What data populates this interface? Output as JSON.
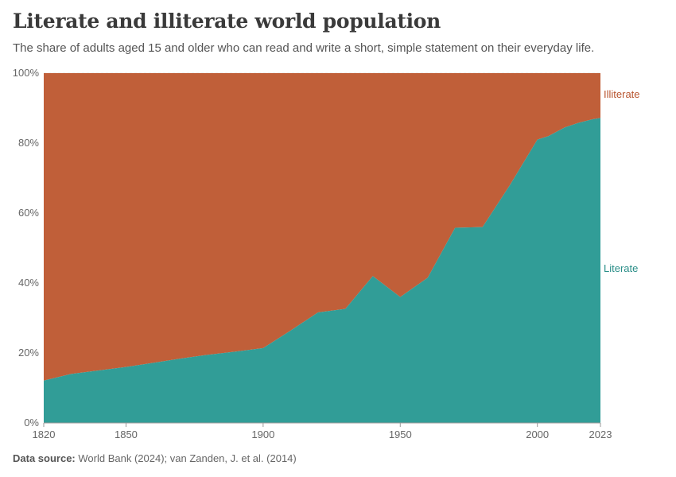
{
  "title": "Literate and illiterate world population",
  "subtitle": "The share of adults aged 15 and older who can read and write a short, simple statement on their everyday life.",
  "footer": {
    "source_label": "Data source:",
    "source_text": "World Bank (2024); van Zanden, J. et al. (2014)"
  },
  "colors": {
    "literate": "#319d97",
    "illiterate": "#c05f39"
  },
  "chart_data": {
    "type": "area",
    "stacked": true,
    "percent": true,
    "x": [
      1820,
      1830,
      1840,
      1850,
      1860,
      1870,
      1880,
      1890,
      1900,
      1910,
      1920,
      1930,
      1940,
      1950,
      1960,
      1970,
      1980,
      1990,
      2000,
      2004,
      2010,
      2015,
      2020,
      2023
    ],
    "series": [
      {
        "name": "Literate",
        "values": [
          12.1,
          14,
          15,
          16,
          17.2,
          18.4,
          19.5,
          20.4,
          21.4,
          26.4,
          31.6,
          32.6,
          42,
          36,
          41.5,
          55.8,
          56,
          68,
          81,
          82,
          84.5,
          85.8,
          86.8,
          87.2
        ]
      },
      {
        "name": "Illiterate",
        "values": [
          87.9,
          86,
          85,
          84,
          82.8,
          81.6,
          80.5,
          79.6,
          78.6,
          73.6,
          68.4,
          67.4,
          58,
          64,
          58.5,
          44.2,
          44,
          32,
          19,
          18,
          15.5,
          14.2,
          13.2,
          12.8
        ]
      }
    ],
    "xlim": [
      1820,
      2023
    ],
    "ylim": [
      0,
      100
    ],
    "x_ticks": [
      1820,
      1850,
      1900,
      1950,
      2000,
      2023
    ],
    "y_ticks": [
      "0%",
      "20%",
      "40%",
      "60%",
      "80%",
      "100%"
    ],
    "y_tick_values": [
      0,
      20,
      40,
      60,
      80,
      100
    ],
    "grid": true
  }
}
